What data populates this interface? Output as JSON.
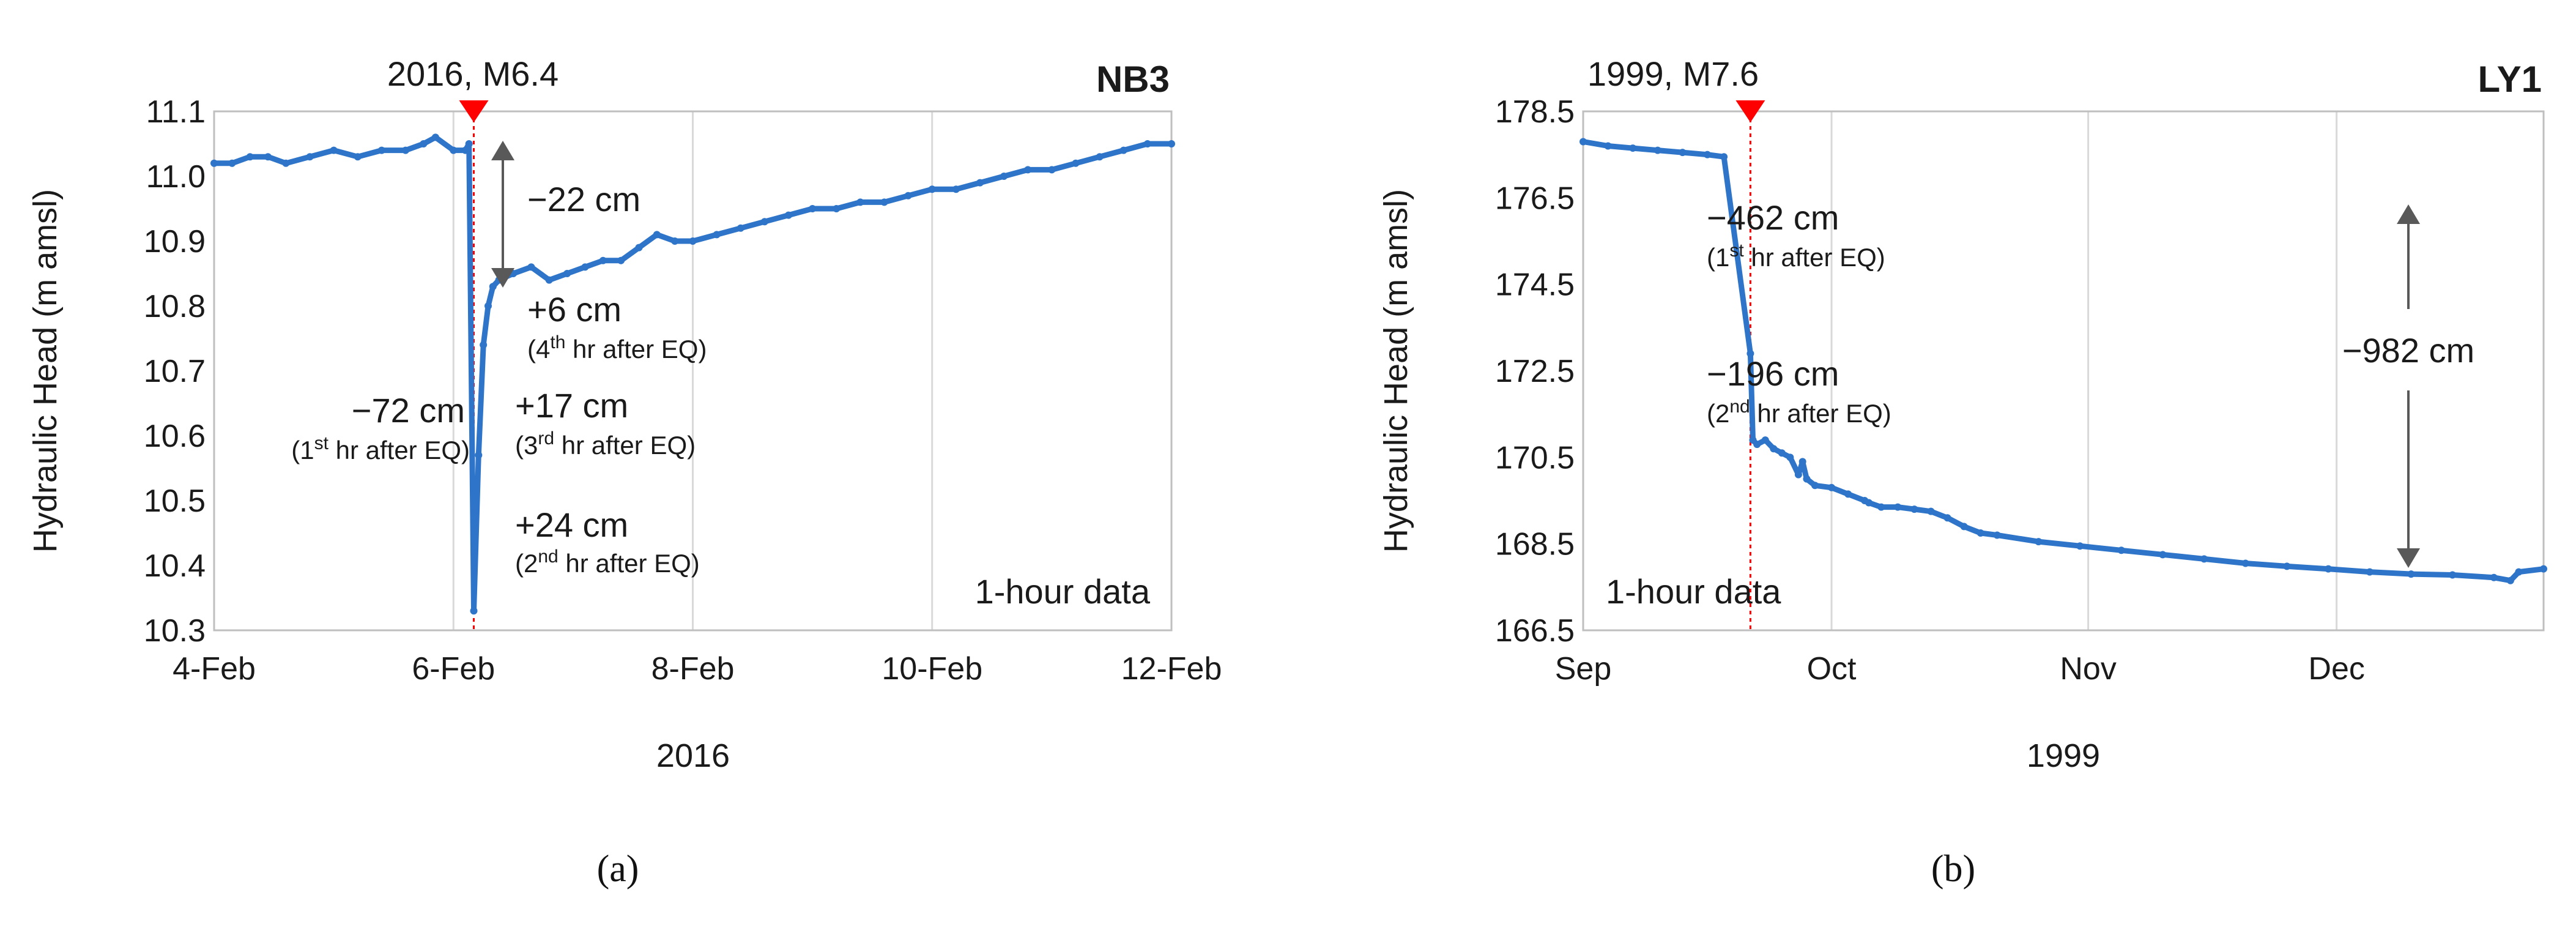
{
  "chart_data": [
    {
      "panel": "(a)",
      "type": "line",
      "title": "NB3",
      "event_label": "2016, M6.4",
      "ylabel": "Hydraulic Head (m amsl)",
      "xlabel": "2016",
      "note": "1-hour data",
      "ylim": [
        10.3,
        11.1
      ],
      "yticks": [
        "11.1",
        "11.0",
        "10.9",
        "10.8",
        "10.7",
        "10.6",
        "10.5",
        "10.4",
        "10.3"
      ],
      "xlim_days": [
        4,
        12
      ],
      "xticks": [
        "4-Feb",
        "6-Feb",
        "8-Feb",
        "10-Feb",
        "12-Feb"
      ],
      "grid": "vertical",
      "series_color": "#2E75C9",
      "event_marker_color": "#FF0000",
      "series": [
        {
          "x": [
            4.0,
            4.15,
            4.3,
            4.45,
            4.6,
            4.8,
            5.0,
            5.2,
            5.4,
            5.6,
            5.75,
            5.85,
            6.0,
            6.1,
            6.13,
            6.17,
            6.21,
            6.25,
            6.29,
            6.33,
            6.38,
            6.5,
            6.65,
            6.8,
            6.95,
            7.1,
            7.25,
            7.4,
            7.55,
            7.7,
            7.85,
            8.0,
            8.2,
            8.4,
            8.6,
            8.8,
            9.0,
            9.2,
            9.4,
            9.6,
            9.8,
            10.0,
            10.2,
            10.4,
            10.6,
            10.8,
            11.0,
            11.2,
            11.4,
            11.6,
            11.8,
            12.0
          ],
          "y": [
            11.02,
            11.02,
            11.03,
            11.03,
            11.02,
            11.03,
            11.04,
            11.03,
            11.04,
            11.04,
            11.05,
            11.06,
            11.04,
            11.04,
            11.05,
            10.33,
            10.57,
            10.74,
            10.8,
            10.83,
            10.84,
            10.85,
            10.86,
            10.84,
            10.85,
            10.86,
            10.87,
            10.87,
            10.89,
            10.91,
            10.9,
            10.9,
            10.91,
            10.92,
            10.93,
            10.94,
            10.95,
            10.95,
            10.96,
            10.96,
            10.97,
            10.98,
            10.98,
            10.99,
            11.0,
            11.01,
            11.01,
            11.02,
            11.03,
            11.04,
            11.05,
            11.05
          ]
        }
      ],
      "annotations": {
        "drop_total": "−22 cm",
        "a1_main": "+6 cm",
        "a1_sub_pre": "(4",
        "a1_sub_sup": "th",
        "a1_sub_post": " hr after EQ)",
        "a2_main": "−72 cm",
        "a2_sub_pre": "(1",
        "a2_sub_sup": "st",
        "a2_sub_post": " hr after EQ)",
        "a3_main": "+17 cm",
        "a3_sub_pre": "(3",
        "a3_sub_sup": "rd",
        "a3_sub_post": " hr after EQ)",
        "a4_main": "+24 cm",
        "a4_sub_pre": "(2",
        "a4_sub_sup": "nd",
        "a4_sub_post": " hr after EQ)"
      }
    },
    {
      "panel": "(b)",
      "type": "line",
      "title": "LY1",
      "event_label": "1999, M7.6",
      "ylabel": "Hydraulic Head (m amsl)",
      "xlabel": "1999",
      "note": "1-hour data",
      "ylim": [
        166.5,
        178.5
      ],
      "yticks": [
        "178.5",
        "176.5",
        "174.5",
        "172.5",
        "170.5",
        "168.5",
        "166.5"
      ],
      "xlim_days": [
        0,
        116
      ],
      "xtick_days": [
        0,
        30,
        61,
        91
      ],
      "xticks": [
        "Sep",
        "Oct",
        "Nov",
        "Dec"
      ],
      "grid": "vertical",
      "series_color": "#2E75C9",
      "event_marker_color": "#FF0000",
      "series": [
        {
          "x": [
            0,
            3,
            6,
            9,
            12,
            15,
            17,
            20.2,
            20.5,
            21,
            22,
            23,
            24,
            25,
            26,
            26.5,
            27,
            28,
            30,
            32,
            34,
            34.5,
            36,
            38,
            40,
            42,
            44,
            46,
            48,
            50,
            55,
            60,
            65,
            70,
            75,
            80,
            85,
            90,
            95,
            100,
            105,
            110,
            112,
            113,
            116
          ],
          "y": [
            177.8,
            177.7,
            177.65,
            177.6,
            177.55,
            177.5,
            177.45,
            172.9,
            170.9,
            170.8,
            170.9,
            170.7,
            170.6,
            170.5,
            170.1,
            170.4,
            170.0,
            169.85,
            169.8,
            169.65,
            169.5,
            169.45,
            169.35,
            169.35,
            169.3,
            169.25,
            169.1,
            168.9,
            168.75,
            168.7,
            168.55,
            168.45,
            168.35,
            168.25,
            168.15,
            168.05,
            167.98,
            167.92,
            167.85,
            167.8,
            167.78,
            167.72,
            167.65,
            167.85,
            167.92
          ]
        }
      ],
      "annotations": {
        "drop_total": "−982 cm",
        "b1_main": "−462 cm",
        "b1_sub_pre": "(1",
        "b1_sub_sup": "st",
        "b1_sub_post": " hr after EQ)",
        "b2_main": "−196 cm",
        "b2_sub_pre": "(2",
        "b2_sub_sup": "nd",
        "b2_sub_post": " hr after EQ)"
      }
    }
  ]
}
